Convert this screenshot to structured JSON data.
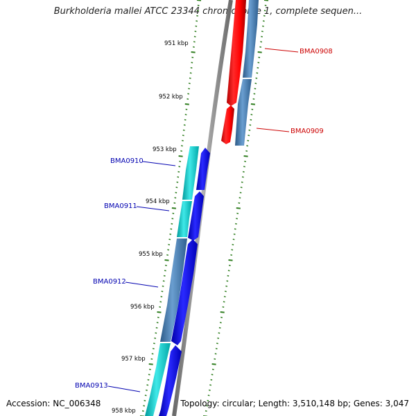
{
  "title": "Burkholderia mallei ATCC 23344 chromosome 1, complete sequen...",
  "footer": {
    "accession": "Accession: NC_006348",
    "stats": "Topology: circular; Length: 3,510,148 bp; Genes: 3,047"
  },
  "colors": {
    "backbone": "#8a8a8a",
    "tick": "#2e7d1e",
    "reverse_label": "#cc0000",
    "forward_label": "#0000b0",
    "red_cds": "#ff0000",
    "steel_cds": "#4a7fb5",
    "cyan_cds": "#00c8c8",
    "blue_cds": "#0000ff"
  },
  "ruler": {
    "labels": [
      "951 kbp",
      "952 kbp",
      "953 kbp",
      "954 kbp",
      "955 kbp",
      "956 kbp",
      "957 kbp",
      "958 kbp"
    ]
  },
  "genes": [
    {
      "name": "BMA0908",
      "strand": "reverse"
    },
    {
      "name": "BMA0909",
      "strand": "reverse"
    },
    {
      "name": "BMA0910",
      "strand": "forward"
    },
    {
      "name": "BMA0911",
      "strand": "forward"
    },
    {
      "name": "BMA0912",
      "strand": "forward"
    },
    {
      "name": "BMA0913",
      "strand": "forward"
    }
  ]
}
